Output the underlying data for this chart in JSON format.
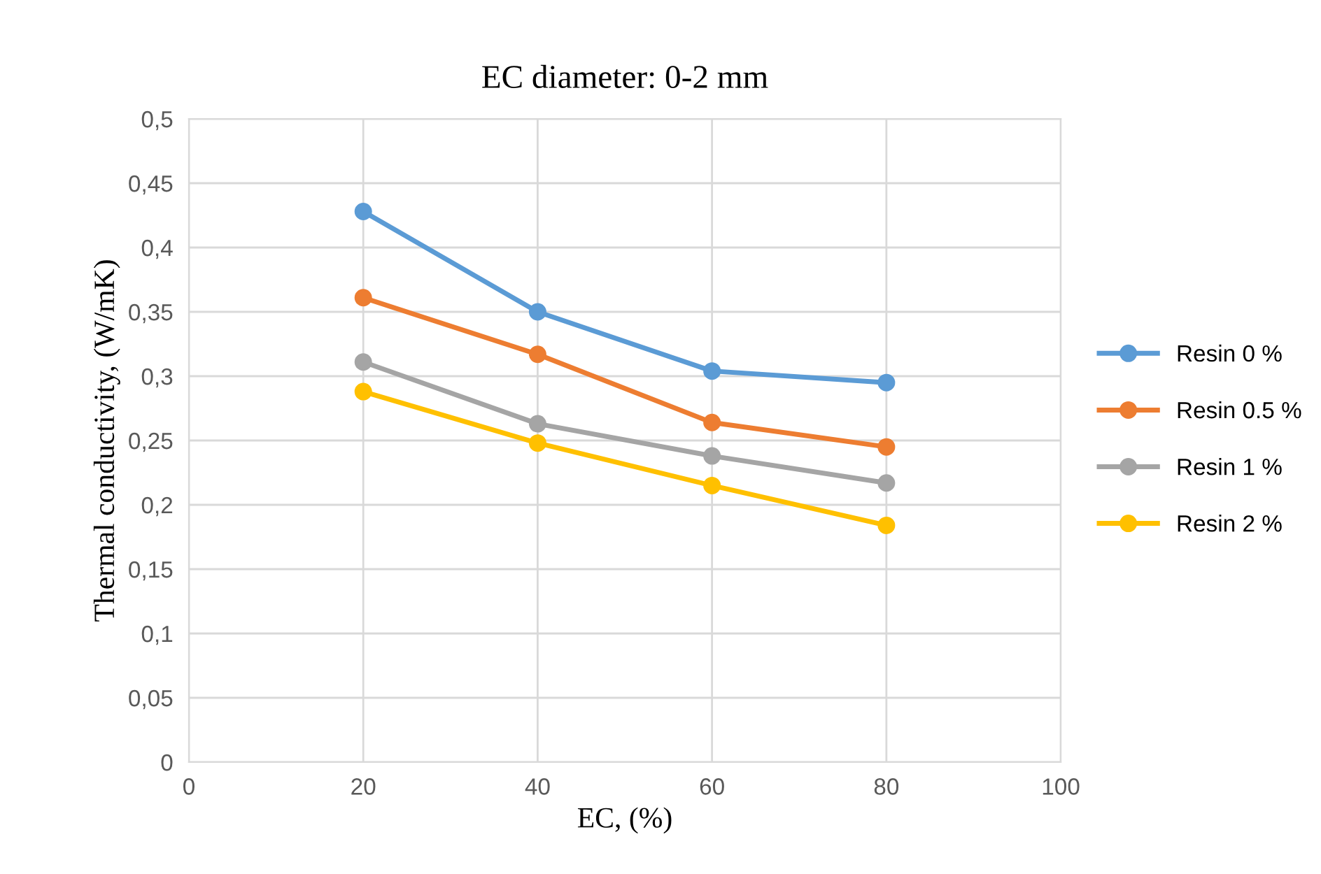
{
  "chart_data": {
    "type": "line",
    "title": "EC diameter: 0-2 mm",
    "xlabel": "EC, (%)",
    "ylabel": "Thermal conductivity, (W/mK)",
    "x": [
      20,
      40,
      60,
      80
    ],
    "series": [
      {
        "name": "Resin 0 %",
        "color": "#5b9bd5",
        "values": [
          0.428,
          0.35,
          0.304,
          0.295
        ]
      },
      {
        "name": "Resin 0.5 %",
        "color": "#ed7d31",
        "values": [
          0.361,
          0.317,
          0.264,
          0.245
        ]
      },
      {
        "name": "Resin 1 %",
        "color": "#a5a5a5",
        "values": [
          0.311,
          0.263,
          0.238,
          0.217
        ]
      },
      {
        "name": "Resin 2 %",
        "color": "#ffc000",
        "values": [
          0.288,
          0.248,
          0.215,
          0.184
        ]
      }
    ],
    "xlim": [
      0,
      100
    ],
    "xticks": [
      0,
      20,
      40,
      60,
      80,
      100
    ],
    "ylim": [
      0,
      0.5
    ],
    "yticks": [
      0,
      {
        "value": 0.05,
        "label": "0,05"
      },
      {
        "value": 0.1,
        "label": "0,1"
      },
      {
        "value": 0.15,
        "label": "0,15"
      },
      {
        "value": 0.2,
        "label": "0,2"
      },
      {
        "value": 0.25,
        "label": "0,25"
      },
      {
        "value": 0.3,
        "label": "0,3"
      },
      {
        "value": 0.35,
        "label": "0,35"
      },
      {
        "value": 0.4,
        "label": "0,4"
      },
      {
        "value": 0.45,
        "label": "0,45"
      },
      {
        "value": 0.5,
        "label": "0,5"
      }
    ],
    "grid": true,
    "legend": "right",
    "marker": "circle",
    "line_style": "solid"
  }
}
